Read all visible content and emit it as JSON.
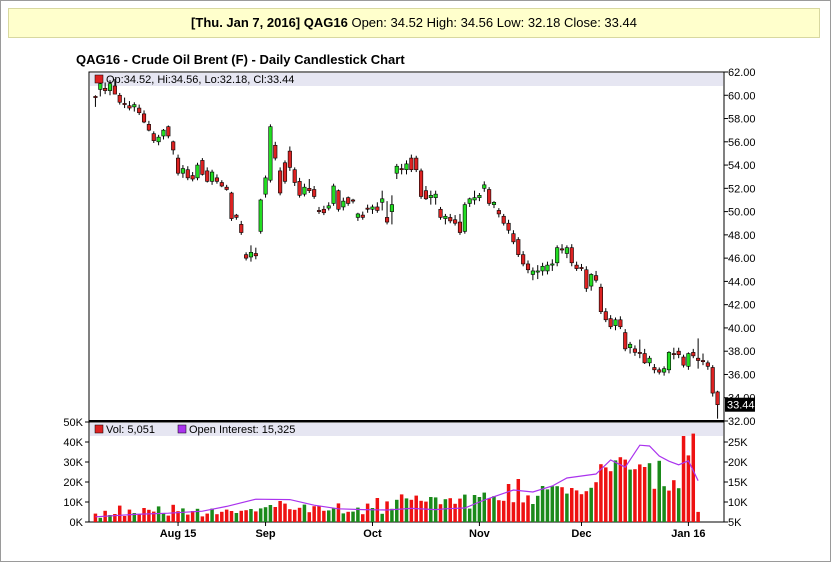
{
  "banner": {
    "date": "[Thu. Jan 7, 2016]",
    "symbol": "QAG16",
    "ohlc": "Open: 34.52 High: 34.56 Low: 32.18 Close: 33.44"
  },
  "chart_data": {
    "type": "candlestick",
    "title": "QAG16 - Crude Oil Brent (F) - Daily Candlestick Chart",
    "price_legend": "Op:34.52, Hi:34.56, Lo:32.18, Cl:33.44",
    "last_price_label": "33.44",
    "price_axis": {
      "min": 32,
      "max": 62,
      "ticks": [
        "62.00",
        "60.00",
        "58.00",
        "56.00",
        "54.00",
        "52.00",
        "50.00",
        "48.00",
        "46.00",
        "44.00",
        "42.00",
        "40.00",
        "38.00",
        "36.00",
        "34.00",
        "32.00"
      ]
    },
    "x_labels": [
      {
        "label": "Aug 15",
        "index": 17
      },
      {
        "label": "Sep",
        "index": 35
      },
      {
        "label": "Oct",
        "index": 57
      },
      {
        "label": "Nov",
        "index": 79
      },
      {
        "label": "Dec",
        "index": 100
      },
      {
        "label": "Jan 16",
        "index": 122
      }
    ],
    "candles": [
      [
        59.9,
        60.0,
        59.0,
        59.8
      ],
      [
        60.5,
        61.2,
        59.9,
        61.0
      ],
      [
        60.6,
        61.1,
        60.1,
        60.4
      ],
      [
        60.4,
        61.3,
        60.0,
        61.0
      ],
      [
        60.8,
        61.4,
        60.2,
        60.1
      ],
      [
        60.0,
        60.2,
        59.2,
        59.4
      ],
      [
        59.3,
        59.8,
        58.9,
        59.2
      ],
      [
        59.1,
        59.5,
        58.7,
        58.9
      ],
      [
        59.0,
        59.4,
        58.6,
        59.2
      ],
      [
        58.9,
        59.2,
        58.3,
        58.5
      ],
      [
        58.4,
        58.7,
        57.6,
        57.7
      ],
      [
        57.5,
        57.8,
        56.9,
        57.0
      ],
      [
        56.7,
        56.9,
        55.9,
        56.1
      ],
      [
        56.0,
        56.6,
        55.7,
        56.4
      ],
      [
        56.5,
        57.1,
        56.2,
        57.0
      ],
      [
        57.3,
        57.4,
        56.3,
        56.5
      ],
      [
        56.0,
        56.1,
        54.9,
        55.3
      ],
      [
        54.6,
        54.9,
        53.1,
        53.3
      ],
      [
        53.3,
        54.0,
        52.9,
        53.7
      ],
      [
        53.6,
        53.9,
        52.7,
        52.9
      ],
      [
        53.1,
        53.4,
        52.6,
        52.8
      ],
      [
        52.9,
        54.2,
        52.7,
        54.0
      ],
      [
        54.4,
        54.6,
        53.1,
        53.2
      ],
      [
        53.5,
        53.8,
        52.5,
        52.6
      ],
      [
        52.6,
        53.6,
        52.3,
        53.4
      ],
      [
        52.9,
        53.2,
        52.4,
        52.6
      ],
      [
        52.5,
        52.7,
        52.1,
        52.2
      ],
      [
        52.1,
        52.3,
        51.8,
        51.9
      ],
      [
        51.6,
        51.7,
        49.2,
        49.4
      ],
      [
        49.7,
        49.8,
        49.3,
        49.5
      ],
      [
        48.9,
        49.2,
        48.0,
        48.2
      ],
      [
        46.3,
        46.5,
        45.8,
        46.0
      ],
      [
        46.1,
        47.1,
        45.7,
        46.5
      ],
      [
        46.4,
        46.9,
        45.9,
        46.2
      ],
      [
        48.3,
        51.1,
        48.1,
        51.0
      ],
      [
        51.5,
        53.1,
        51.2,
        52.9
      ],
      [
        52.7,
        57.5,
        52.5,
        57.3
      ],
      [
        55.7,
        56.0,
        54.4,
        54.6
      ],
      [
        53.5,
        53.8,
        51.4,
        51.6
      ],
      [
        54.2,
        54.4,
        52.4,
        52.6
      ],
      [
        55.2,
        55.6,
        53.5,
        53.8
      ],
      [
        53.6,
        53.8,
        52.2,
        52.5
      ],
      [
        52.6,
        52.9,
        51.2,
        51.4
      ],
      [
        51.5,
        52.4,
        51.3,
        52.1
      ],
      [
        52.0,
        52.8,
        51.6,
        51.8
      ],
      [
        51.9,
        52.2,
        51.1,
        51.3
      ],
      [
        50.1,
        50.4,
        49.8,
        50.0
      ],
      [
        50.2,
        50.5,
        49.7,
        49.9
      ],
      [
        50.3,
        50.8,
        50.1,
        50.5
      ],
      [
        50.7,
        52.4,
        50.5,
        52.2
      ],
      [
        51.8,
        51.9,
        50.0,
        50.2
      ],
      [
        50.4,
        51.2,
        50.1,
        50.9
      ],
      [
        51.2,
        51.3,
        50.5,
        50.7
      ],
      [
        51.0,
        51.1,
        50.7,
        50.9
      ],
      [
        49.5,
        49.9,
        49.2,
        49.8
      ],
      [
        49.7,
        50.0,
        49.3,
        49.5
      ],
      [
        50.3,
        50.6,
        49.9,
        50.2
      ],
      [
        50.2,
        50.6,
        49.8,
        50.4
      ],
      [
        50.4,
        50.8,
        49.9,
        50.1
      ],
      [
        50.8,
        51.8,
        50.1,
        51.1
      ],
      [
        49.5,
        50.9,
        48.9,
        49.1
      ],
      [
        50.0,
        51.4,
        48.9,
        50.6
      ],
      [
        53.3,
        54.1,
        52.8,
        53.9
      ],
      [
        53.7,
        54.1,
        53.2,
        53.6
      ],
      [
        53.6,
        54.4,
        53.2,
        54.1
      ],
      [
        54.6,
        54.9,
        53.4,
        53.6
      ],
      [
        54.6,
        54.8,
        53.4,
        53.6
      ],
      [
        53.5,
        53.7,
        51.1,
        51.3
      ],
      [
        51.8,
        52.2,
        51.0,
        51.1
      ],
      [
        51.2,
        51.8,
        50.6,
        51.4
      ],
      [
        51.2,
        51.8,
        50.6,
        51.5
      ],
      [
        50.2,
        50.4,
        49.3,
        49.5
      ],
      [
        49.4,
        49.8,
        48.9,
        49.6
      ],
      [
        49.5,
        49.8,
        49.0,
        49.2
      ],
      [
        49.3,
        49.7,
        48.8,
        49.0
      ],
      [
        49.1,
        49.8,
        48.0,
        48.2
      ],
      [
        48.3,
        50.8,
        48.1,
        50.6
      ],
      [
        50.7,
        51.2,
        50.4,
        51.1
      ],
      [
        51.0,
        51.8,
        50.6,
        51.2
      ],
      [
        51.2,
        51.6,
        50.9,
        51.4
      ],
      [
        52.0,
        52.6,
        51.7,
        52.3
      ],
      [
        51.9,
        52.1,
        50.5,
        50.7
      ],
      [
        50.6,
        50.9,
        50.3,
        50.8
      ],
      [
        50.1,
        50.3,
        49.5,
        49.8
      ],
      [
        49.6,
        49.8,
        48.8,
        49.0
      ],
      [
        49.0,
        49.3,
        48.1,
        48.4
      ],
      [
        48.1,
        48.4,
        47.2,
        47.4
      ],
      [
        47.6,
        47.8,
        46.1,
        46.3
      ],
      [
        46.3,
        46.6,
        45.3,
        45.5
      ],
      [
        45.5,
        45.8,
        44.7,
        45.0
      ],
      [
        44.6,
        45.2,
        44.1,
        44.9
      ],
      [
        44.8,
        45.4,
        44.2,
        44.9
      ],
      [
        44.9,
        45.6,
        44.5,
        45.3
      ],
      [
        44.9,
        45.7,
        44.6,
        45.4
      ],
      [
        45.4,
        45.9,
        44.9,
        45.5
      ],
      [
        45.6,
        47.1,
        45.3,
        46.9
      ],
      [
        46.8,
        47.2,
        46.4,
        46.7
      ],
      [
        46.4,
        47.1,
        46.0,
        46.9
      ],
      [
        46.9,
        47.2,
        45.3,
        45.6
      ],
      [
        45.4,
        45.7,
        44.9,
        45.1
      ],
      [
        45.2,
        45.5,
        44.9,
        45.1
      ],
      [
        45.0,
        45.3,
        43.1,
        43.4
      ],
      [
        43.6,
        44.7,
        43.2,
        44.6
      ],
      [
        44.5,
        44.9,
        43.9,
        44.1
      ],
      [
        43.5,
        43.8,
        41.2,
        41.4
      ],
      [
        41.4,
        41.7,
        40.5,
        40.7
      ],
      [
        40.8,
        41.1,
        39.9,
        40.1
      ],
      [
        40.2,
        40.9,
        39.8,
        40.7
      ],
      [
        40.7,
        41.0,
        39.9,
        40.1
      ],
      [
        39.6,
        39.9,
        38.0,
        38.2
      ],
      [
        38.3,
        38.8,
        37.8,
        38.6
      ],
      [
        38.2,
        38.5,
        37.6,
        37.9
      ],
      [
        37.9,
        39.0,
        37.4,
        37.8
      ],
      [
        37.8,
        38.2,
        36.9,
        37.0
      ],
      [
        37.0,
        37.6,
        36.7,
        37.4
      ],
      [
        36.6,
        36.9,
        36.1,
        36.4
      ],
      [
        36.4,
        36.6,
        36.0,
        36.2
      ],
      [
        36.2,
        36.7,
        35.9,
        36.5
      ],
      [
        36.4,
        38.0,
        36.1,
        37.9
      ],
      [
        37.8,
        38.3,
        37.3,
        37.7
      ],
      [
        38.0,
        38.3,
        37.4,
        37.7
      ],
      [
        37.5,
        37.7,
        36.6,
        36.8
      ],
      [
        36.7,
        37.9,
        36.4,
        37.8
      ],
      [
        37.9,
        38.2,
        37.4,
        37.6
      ],
      [
        37.4,
        39.1,
        36.5,
        37.2
      ],
      [
        37.2,
        37.8,
        36.8,
        37.1
      ],
      [
        37.0,
        37.2,
        36.4,
        36.7
      ],
      [
        36.6,
        36.8,
        34.1,
        34.4
      ],
      [
        34.5,
        34.6,
        32.2,
        33.4
      ]
    ],
    "volume": {
      "legend": "Vol: 5,051",
      "axis": {
        "min": 0,
        "max": 50000,
        "ticks": [
          "50K",
          "40K",
          "30K",
          "20K",
          "10K",
          "0K"
        ]
      },
      "values": [
        4200,
        2100,
        5600,
        3500,
        4000,
        8200,
        3000,
        6200,
        4500,
        3800,
        7000,
        6100,
        5200,
        7800,
        4300,
        3200,
        8600,
        5400,
        6800,
        3700,
        5500,
        6600,
        2800,
        4200,
        6700,
        3900,
        5100,
        6200,
        5500,
        4500,
        5600,
        5900,
        6500,
        5300,
        6800,
        7400,
        8500,
        7500,
        10500,
        9200,
        6400,
        6100,
        7100,
        8700,
        4900,
        7900,
        8200,
        5600,
        5800,
        7000,
        9300,
        4300,
        5100,
        5200,
        7200,
        3900,
        9200,
        7000,
        12000,
        4100,
        10300,
        6600,
        11100,
        13800,
        11800,
        11100,
        13200,
        10600,
        10200,
        12500,
        12300,
        8900,
        11400,
        11900,
        9100,
        11700,
        13700,
        6700,
        13500,
        12500,
        14700,
        11800,
        12900,
        10900,
        10600,
        19000,
        9900,
        21500,
        9800,
        13300,
        9000,
        13100,
        18000,
        16300,
        17900,
        17900,
        17400,
        14200,
        17000,
        15800,
        13900,
        15400,
        17100,
        19900,
        28900,
        27300,
        25400,
        30800,
        32400,
        31200,
        26200,
        26400,
        28800,
        27500,
        29400,
        16600,
        30600,
        17900,
        15700,
        20900,
        16900,
        43000,
        33300,
        44200,
        5051
      ],
      "up": [
        0,
        1,
        0,
        1,
        0,
        0,
        0,
        0,
        1,
        0,
        0,
        0,
        0,
        1,
        1,
        0,
        0,
        0,
        1,
        0,
        0,
        1,
        0,
        0,
        1,
        0,
        0,
        0,
        0,
        1,
        0,
        0,
        1,
        0,
        1,
        1,
        1,
        0,
        0,
        0,
        0,
        0,
        0,
        1,
        0,
        0,
        0,
        0,
        1,
        1,
        0,
        1,
        0,
        1,
        1,
        0,
        0,
        1,
        0,
        1,
        0,
        1,
        1,
        0,
        1,
        0,
        0,
        0,
        0,
        1,
        1,
        0,
        1,
        0,
        0,
        0,
        1,
        1,
        1,
        1,
        1,
        0,
        1,
        0,
        0,
        0,
        0,
        0,
        0,
        0,
        1,
        1,
        1,
        1,
        1,
        1,
        0,
        1,
        0,
        0,
        0,
        0,
        1,
        0,
        0,
        0,
        0,
        1,
        0,
        0,
        1,
        0,
        0,
        0,
        1,
        0,
        1,
        1,
        0,
        0,
        1,
        0,
        0,
        0,
        0
      ]
    },
    "open_interest": {
      "legend": "Open Interest: 15,325",
      "axis": {
        "min": 5000,
        "max": 30000,
        "ticks": [
          "25K",
          "20K",
          "15K",
          "10K",
          "5K"
        ]
      },
      "values": [
        [
          0,
          6300
        ],
        [
          8,
          6900
        ],
        [
          15,
          7200
        ],
        [
          22,
          7700
        ],
        [
          27,
          8900
        ],
        [
          33,
          10700
        ],
        [
          40,
          10600
        ],
        [
          45,
          9200
        ],
        [
          50,
          8300
        ],
        [
          55,
          8100
        ],
        [
          60,
          8000
        ],
        [
          65,
          8400
        ],
        [
          70,
          8100
        ],
        [
          72,
          8300
        ],
        [
          76,
          8500
        ],
        [
          80,
          10500
        ],
        [
          86,
          13000
        ],
        [
          90,
          12500
        ],
        [
          94,
          14000
        ],
        [
          97,
          16000
        ],
        [
          100,
          16500
        ],
        [
          103,
          17000
        ],
        [
          106,
          20500
        ],
        [
          109,
          18700
        ],
        [
          112,
          24200
        ],
        [
          114,
          24000
        ],
        [
          116,
          21500
        ],
        [
          118,
          20200
        ],
        [
          120,
          19300
        ],
        [
          122,
          20300
        ],
        [
          124,
          15325
        ]
      ]
    }
  }
}
